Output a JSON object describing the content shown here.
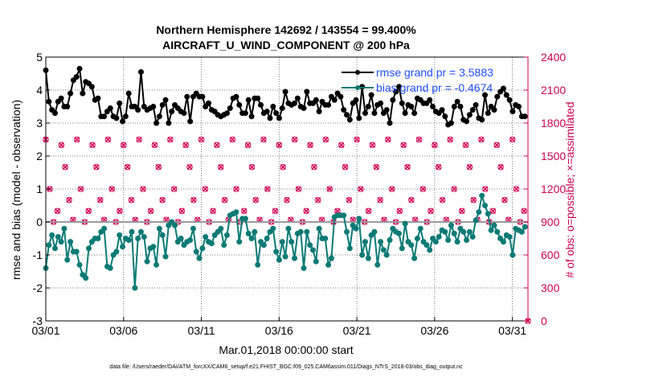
{
  "chart_data": {
    "type": "line",
    "title_line1": "Northern Hemisphere 142692 / 143554 = 99.400%",
    "title_line2": "AIRCRAFT_U_WIND_COMPONENT @ 200 hPa",
    "xlabel": "Mar.01,2018 00:00:00 start",
    "ylabel": "rmse and bias (model - observation)",
    "ylabel_right": "# of obs: o=possible; ×=assimilated",
    "footer": "data file: /Users/raeder/DAI/ATM_forcXX/CAM6_setup/f.e21.FHIST_BGC.f09_025.CAM6assim.011/Diags_NTrS_2018-03/obs_diag_output.nc",
    "x_tick_labels": [
      "03/01",
      "03/06",
      "03/11",
      "03/16",
      "03/21",
      "03/26",
      "03/31"
    ],
    "x_tick_days": [
      0,
      5,
      10,
      15,
      20,
      25,
      30
    ],
    "xlim": [
      0,
      31
    ],
    "y_tick_labels": [
      "-3",
      "-2",
      "-1",
      "0",
      "1",
      "2",
      "3",
      "4",
      "5"
    ],
    "ylim": [
      -3,
      5
    ],
    "y_right_tick_labels": [
      "0",
      "300",
      "600",
      "900",
      "1200",
      "1500",
      "1800",
      "2100",
      "2400"
    ],
    "y_right_lim": [
      0,
      2400
    ],
    "series": [
      {
        "name": "rmse grand pr = 3.5883",
        "color": "#000000",
        "axis": "left",
        "values": [
          4.6,
          3.65,
          3.4,
          3.3,
          3.65,
          3.75,
          3.5,
          3.5,
          3.9,
          4.3,
          4.4,
          4.65,
          3.9,
          4.25,
          4.2,
          4.1,
          3.7,
          3.75,
          3.2,
          3.2,
          3.35,
          3.45,
          3.2,
          3.15,
          3.6,
          3.05,
          3.2,
          3.9,
          3.5,
          3.5,
          3.4,
          4.55,
          3.5,
          3.4,
          3.45,
          3.5,
          3.0,
          3.2,
          3.55,
          3.7,
          3.0,
          3.35,
          3.55,
          3.45,
          3.35,
          3.3,
          3.8,
          3.05,
          3.8,
          3.9,
          3.8,
          3.8,
          3.5,
          3.6,
          3.4,
          3.35,
          3.25,
          3.2,
          3.25,
          3.3,
          3.45,
          3.75,
          3.8,
          3.55,
          3.3,
          3.3,
          3.7,
          3.2,
          3.75,
          3.75,
          3.55,
          3.3,
          3.35,
          3.15,
          3.5,
          3.3,
          3.15,
          3.45,
          3.95,
          3.6,
          3.55,
          3.6,
          3.75,
          3.5,
          3.45,
          3.95,
          3.6,
          3.6,
          3.7,
          3.35,
          3.65,
          3.55,
          3.55,
          3.8,
          3.7,
          3.9,
          3.8,
          3.4,
          3.25,
          3.1,
          3.6,
          3.7,
          3.15,
          4.1,
          3.3,
          3.5,
          3.85,
          3.3,
          3.55,
          3.6,
          3.3,
          3.4,
          3.0,
          3.7,
          3.95,
          4.1,
          3.6,
          3.3,
          3.55,
          3.5,
          3.3,
          3.75,
          3.7,
          3.6,
          3.6,
          3.7,
          3.5,
          3.35,
          3.3,
          3.4,
          3.2,
          2.95,
          3.0,
          3.5,
          3.65,
          3.5,
          3.1,
          3.05,
          3.25,
          3.4,
          3.55,
          3.15,
          3.1,
          3.85,
          3.3,
          3.5,
          3.4,
          3.8,
          3.95,
          4.05,
          3.85,
          3.7,
          3.35,
          3.55,
          3.5,
          3.2,
          3.2
        ]
      },
      {
        "name": "bias grand pr = -0.4674",
        "color": "#0b7a75",
        "axis": "left",
        "values": [
          -1.4,
          -0.7,
          -0.4,
          -0.8,
          -0.45,
          -0.6,
          -0.2,
          -1.15,
          -0.6,
          -0.9,
          -0.9,
          -1.3,
          -1.6,
          -1.7,
          -0.8,
          -0.6,
          -0.5,
          -0.5,
          -0.3,
          -0.2,
          -1.35,
          -1.4,
          -1.0,
          -0.9,
          -0.4,
          -0.75,
          -0.5,
          -0.55,
          -0.3,
          -2.0,
          -0.5,
          -0.3,
          -0.45,
          -1.2,
          -0.8,
          -0.75,
          -1.3,
          -0.2,
          -0.4,
          -1.05,
          -0.1,
          0.0,
          -0.1,
          -0.6,
          -0.5,
          -0.7,
          -0.6,
          -0.55,
          -0.2,
          -0.9,
          -1.1,
          -0.8,
          -0.45,
          -0.6,
          -0.65,
          -0.4,
          -0.3,
          -0.2,
          -0.7,
          -0.4,
          0.2,
          0.25,
          0.3,
          -0.6,
          0.1,
          0.1,
          -0.35,
          -0.5,
          -0.3,
          -1.3,
          -0.6,
          -0.7,
          -0.5,
          -0.3,
          -0.2,
          -0.9,
          -1.15,
          -0.6,
          -1.05,
          -0.2,
          -0.6,
          -1.1,
          -0.35,
          -0.3,
          -1.4,
          -0.3,
          -0.7,
          -0.85,
          -1.2,
          -0.2,
          -0.5,
          -0.5,
          -1.3,
          -1.1,
          0.15,
          0.2,
          0.2,
          0.2,
          -0.3,
          -0.8,
          -0.1,
          -0.2,
          0.1,
          -1.0,
          -0.6,
          -1.1,
          -0.4,
          -0.3,
          -1.3,
          -0.6,
          -0.85,
          -1.0,
          -0.55,
          -0.2,
          -0.3,
          -0.35,
          -0.8,
          -0.05,
          -0.6,
          -0.7,
          -1.1,
          -0.5,
          -0.2,
          -0.6,
          -0.7,
          -0.85,
          -0.5,
          -0.6,
          -0.45,
          -0.25,
          -0.3,
          -0.55,
          -0.1,
          -0.35,
          -0.6,
          -0.2,
          -0.3,
          -0.55,
          -0.3,
          -0.45,
          0.05,
          0.3,
          0.8,
          0.5,
          0.25,
          -0.25,
          -0.1,
          -0.3,
          -0.5,
          -0.6,
          -0.4,
          -0.45,
          -1.0,
          -0.2,
          -0.25,
          -0.3,
          -0.15
        ]
      }
    ],
    "obs_count_day_pattern": [
      1650,
      1200,
      900,
      1000,
      1600,
      1400,
      1100,
      920
    ],
    "obs_count_final": 0,
    "legend_location": "top-right",
    "zero_line": true
  }
}
